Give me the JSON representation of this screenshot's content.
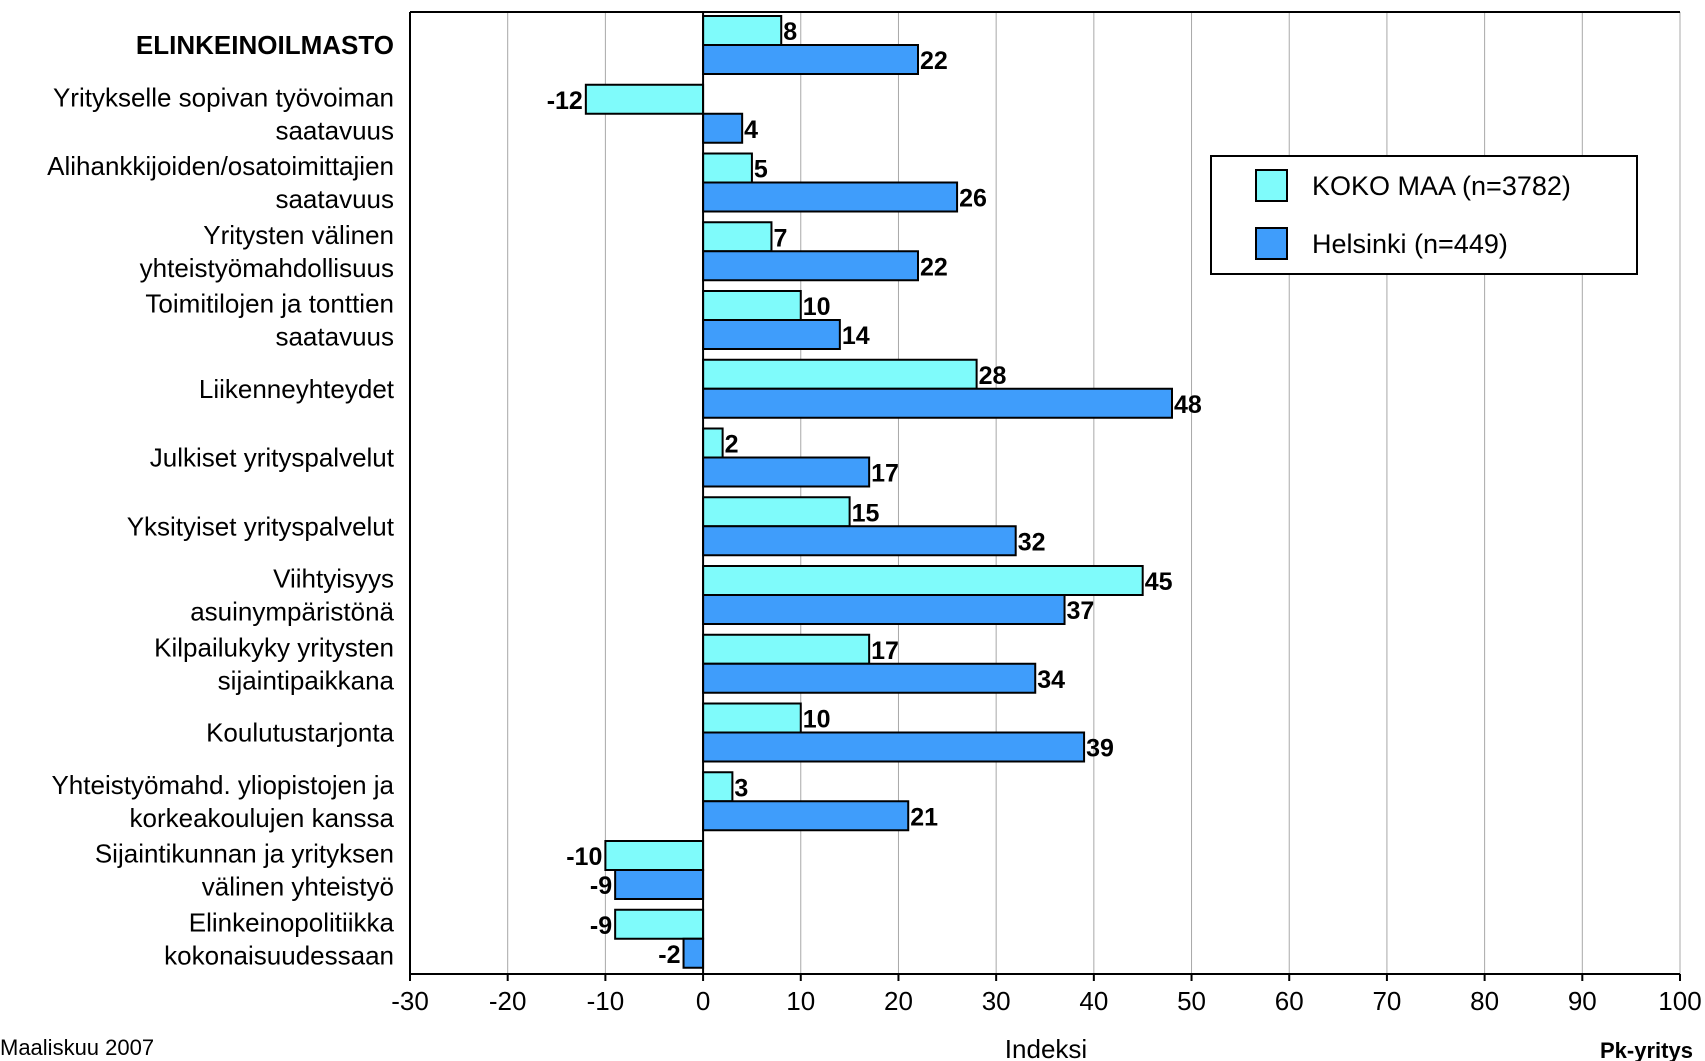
{
  "chart_data": {
    "type": "bar",
    "orientation": "horizontal",
    "categories": [
      [
        "ELINKEINOILMASTO"
      ],
      [
        "Yritykselle sopivan työvoiman",
        "saatavuus"
      ],
      [
        "Alihankkijoiden/osatoimittajien",
        "saatavuus"
      ],
      [
        "Yritysten välinen",
        "yhteistyömahdollisuus"
      ],
      [
        "Toimitilojen ja tonttien",
        "saatavuus"
      ],
      [
        "Liikenneyhteydet"
      ],
      [
        "Julkiset yrityspalvelut"
      ],
      [
        "Yksityiset yrityspalvelut"
      ],
      [
        "Viihtyisyys",
        "asuinympäristönä"
      ],
      [
        "Kilpailukyky yritysten",
        "sijaintipaikkana"
      ],
      [
        "Koulutustarjonta"
      ],
      [
        "Yhteistyömahd. yliopistojen ja",
        "korkeakoulujen kanssa"
      ],
      [
        "Sijaintikunnan ja yrityksen",
        "välinen yhteistyö"
      ],
      [
        "Elinkeinopolitiikka",
        "kokonaisuudessaan"
      ]
    ],
    "bold_categories": [
      0
    ],
    "series": [
      {
        "name": "KOKO MAA (n=3782)",
        "color": "#7ffbfb",
        "values": [
          8,
          -12,
          5,
          7,
          10,
          28,
          2,
          15,
          45,
          17,
          10,
          3,
          -10,
          -9
        ]
      },
      {
        "name": "Helsinki (n=449)",
        "color": "#3f9dfb",
        "values": [
          22,
          4,
          26,
          22,
          14,
          48,
          17,
          32,
          37,
          34,
          39,
          21,
          -9,
          -2
        ]
      }
    ],
    "xlabel": "Indeksi",
    "xlim": [
      -30,
      100
    ],
    "xticks": [
      -30,
      -20,
      -10,
      0,
      10,
      20,
      30,
      40,
      50,
      60,
      70,
      80,
      90,
      100
    ],
    "grid": true,
    "legend_position": "top-right"
  },
  "footer": {
    "left": "Maaliskuu 2007",
    "right": "Pk-yritys"
  }
}
